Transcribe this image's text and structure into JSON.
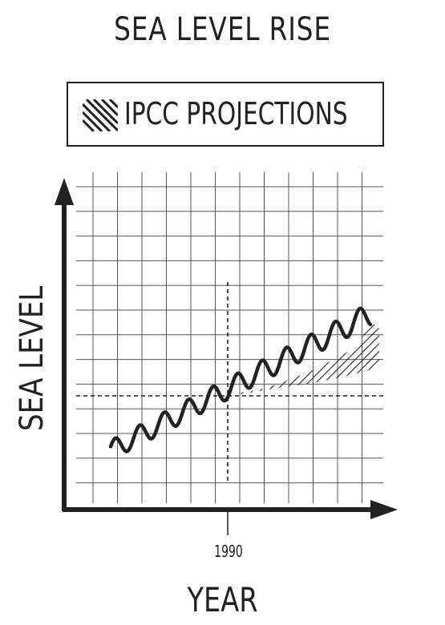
{
  "chart_data": {
    "type": "line",
    "title": "SEA LEVEL RISE",
    "xlabel": "YEAR",
    "ylabel": "SEA LEVEL",
    "x_tick_labels": [
      "1990"
    ],
    "grid": true,
    "legend": {
      "placement": "top",
      "entries": [
        {
          "label": "IPCC PROJECTIONS",
          "style": "hatched"
        }
      ]
    },
    "reference_lines": [
      {
        "axis": "x",
        "value": "1990",
        "style": "dashed"
      }
    ],
    "series": [
      {
        "style": "wavy-line",
        "color": "#222222"
      },
      {
        "name": "IPCC PROJECTIONS",
        "style": "hatched-band"
      }
    ]
  },
  "colors": {
    "ink": "#222222",
    "grid": "#555555",
    "background": "#ffffff"
  }
}
